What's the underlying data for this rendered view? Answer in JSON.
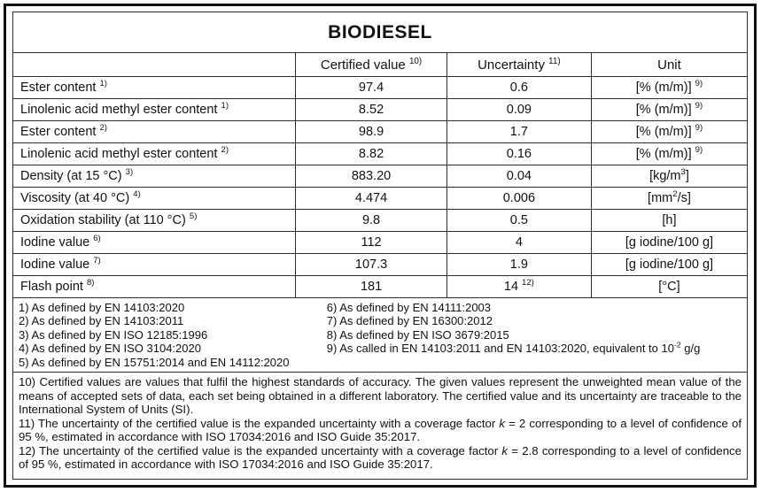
{
  "document": {
    "title": "BIODIESEL",
    "colors": {
      "border": "#2e2e2e",
      "frame": "#0f0f0f",
      "text": "#111111",
      "background": "#ffffff"
    },
    "table": {
      "headers": [
        [
          {
            "t": ""
          }
        ],
        [
          {
            "t": "Certified value "
          },
          {
            "t": "10)",
            "sup": true
          }
        ],
        [
          {
            "t": "Uncertainty "
          },
          {
            "t": "11)",
            "sup": true
          }
        ],
        [
          {
            "t": "Unit"
          }
        ]
      ],
      "rows": [
        {
          "property": [
            {
              "t": "Ester content "
            },
            {
              "t": "1)",
              "sup": true
            }
          ],
          "value": "97.4",
          "uncertainty": [
            {
              "t": "0.6"
            }
          ],
          "unit": [
            {
              "t": "[% (m/m)] "
            },
            {
              "t": "9)",
              "sup": true
            }
          ]
        },
        {
          "property": [
            {
              "t": "Linolenic acid methyl ester content "
            },
            {
              "t": "1)",
              "sup": true
            }
          ],
          "value": "8.52",
          "uncertainty": [
            {
              "t": "0.09"
            }
          ],
          "unit": [
            {
              "t": "[% (m/m)] "
            },
            {
              "t": "9)",
              "sup": true
            }
          ]
        },
        {
          "property": [
            {
              "t": "Ester content "
            },
            {
              "t": "2)",
              "sup": true
            }
          ],
          "value": "98.9",
          "uncertainty": [
            {
              "t": "1.7"
            }
          ],
          "unit": [
            {
              "t": "[% (m/m)] "
            },
            {
              "t": "9)",
              "sup": true
            }
          ]
        },
        {
          "property": [
            {
              "t": "Linolenic acid methyl ester content "
            },
            {
              "t": "2)",
              "sup": true
            }
          ],
          "value": "8.82",
          "uncertainty": [
            {
              "t": "0.16"
            }
          ],
          "unit": [
            {
              "t": "[% (m/m)] "
            },
            {
              "t": "9)",
              "sup": true
            }
          ]
        },
        {
          "property": [
            {
              "t": "Density (at 15 °C) "
            },
            {
              "t": "3)",
              "sup": true
            }
          ],
          "value": "883.20",
          "uncertainty": [
            {
              "t": "0.04"
            }
          ],
          "unit": [
            {
              "t": "[kg/m"
            },
            {
              "t": "3",
              "sup": true
            },
            {
              "t": "]"
            }
          ]
        },
        {
          "property": [
            {
              "t": "Viscosity (at 40 °C) "
            },
            {
              "t": "4)",
              "sup": true
            }
          ],
          "value": "4.474",
          "uncertainty": [
            {
              "t": "0.006"
            }
          ],
          "unit": [
            {
              "t": "[mm"
            },
            {
              "t": "2",
              "sup": true
            },
            {
              "t": "/s]"
            }
          ]
        },
        {
          "property": [
            {
              "t": "Oxidation stability (at 110 °C) "
            },
            {
              "t": "5)",
              "sup": true
            }
          ],
          "value": "9.8",
          "uncertainty": [
            {
              "t": "0.5"
            }
          ],
          "unit": [
            {
              "t": "[h]"
            }
          ]
        },
        {
          "property": [
            {
              "t": "Iodine value "
            },
            {
              "t": "6)",
              "sup": true
            }
          ],
          "value": "112",
          "uncertainty": [
            {
              "t": "4"
            }
          ],
          "unit": [
            {
              "t": "[g iodine/100 g]"
            }
          ]
        },
        {
          "property": [
            {
              "t": "Iodine value "
            },
            {
              "t": "7)",
              "sup": true
            }
          ],
          "value": "107.3",
          "uncertainty": [
            {
              "t": "1.9"
            }
          ],
          "unit": [
            {
              "t": "[g iodine/100 g]"
            }
          ]
        },
        {
          "property": [
            {
              "t": "Flash point "
            },
            {
              "t": "8)",
              "sup": true
            }
          ],
          "value": "181",
          "uncertainty": [
            {
              "t": "14 "
            },
            {
              "t": "12)",
              "sup": true
            }
          ],
          "unit": [
            {
              "t": "[°C]"
            }
          ]
        }
      ]
    },
    "footnotes_left": [
      [
        {
          "t": "1) As defined by EN 14103:2020"
        }
      ],
      [
        {
          "t": "2) As defined by EN 14103:2011"
        }
      ],
      [
        {
          "t": "3) As defined by EN ISO 12185:1996"
        }
      ],
      [
        {
          "t": "4) As defined by EN ISO 3104:2020"
        }
      ],
      [
        {
          "t": "5) As defined by EN 15751:2014 and EN 14112:2020"
        }
      ]
    ],
    "footnotes_right": [
      [
        {
          "t": "6) As defined by EN 14111:2003"
        }
      ],
      [
        {
          "t": "7) As defined by EN 16300:2012"
        }
      ],
      [
        {
          "t": "8) As defined by EN ISO 3679:2015"
        }
      ],
      [
        {
          "t": "9) As called in EN 14103:2011 and EN 14103:2020, equivalent to 10"
        },
        {
          "t": "-2",
          "sup": true
        },
        {
          "t": " g/g"
        }
      ]
    ],
    "paragraphs": [
      [
        {
          "t": "10) Certified values are values that fulfil the highest standards of accuracy. The given values represent the unweighted mean value of the means of accepted sets of data, each set being obtained in a different laboratory. The certified value and its uncertainty are traceable to the International System of Units (SI)."
        }
      ],
      [
        {
          "t": "11) The uncertainty of the certified value is the expanded uncertainty with a coverage factor "
        },
        {
          "t": "k",
          "i": true
        },
        {
          "t": " = 2 corresponding to a level of confidence of 95 %, estimated in accordance with ISO 17034:2016 and ISO Guide 35:2017."
        }
      ],
      [
        {
          "t": "12) The uncertainty of the certified value is the expanded uncertainty with a coverage factor "
        },
        {
          "t": "k",
          "i": true
        },
        {
          "t": " = 2.8 corresponding to a level of confidence of 95 %, estimated in accordance with ISO 17034:2016 and ISO Guide 35:2017."
        }
      ]
    ]
  }
}
